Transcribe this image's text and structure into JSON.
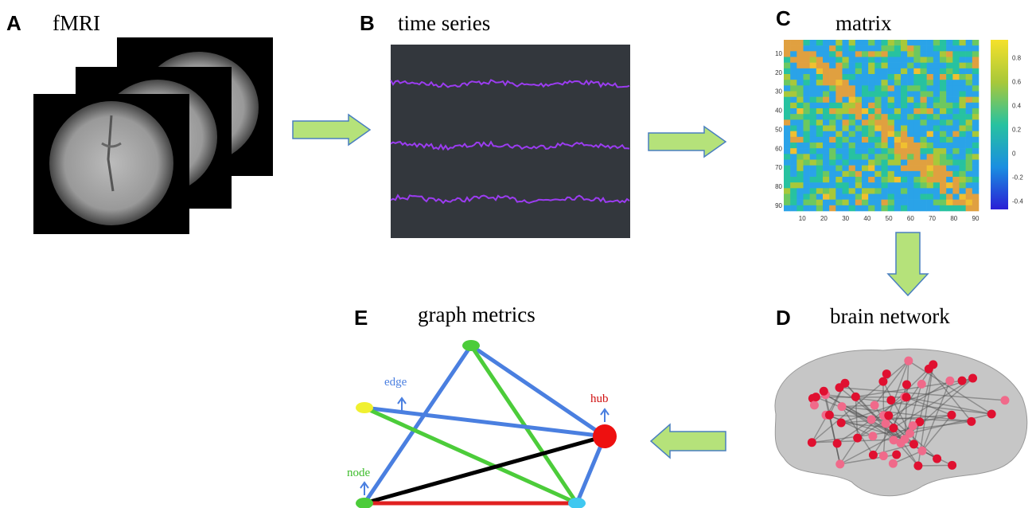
{
  "panels": [
    {
      "letter": "A",
      "title": "fMRI"
    },
    {
      "letter": "B",
      "title": "time series"
    },
    {
      "letter": "C",
      "title": "matrix"
    },
    {
      "letter": "D",
      "title": "brain network"
    },
    {
      "letter": "E",
      "title": "graph metrics"
    }
  ],
  "matrix": {
    "colorbar_ticks": [
      0.8,
      0.6,
      0.4,
      0.2,
      0,
      -0.2,
      -0.4
    ],
    "x_ticks": [
      10,
      20,
      30,
      40,
      50,
      60,
      70,
      80,
      90
    ],
    "y_ticks": [
      10,
      20,
      30,
      40,
      50,
      60,
      70,
      80,
      90
    ]
  },
  "graph": {
    "edge": "edge",
    "hub": "hub",
    "node": "node"
  }
}
